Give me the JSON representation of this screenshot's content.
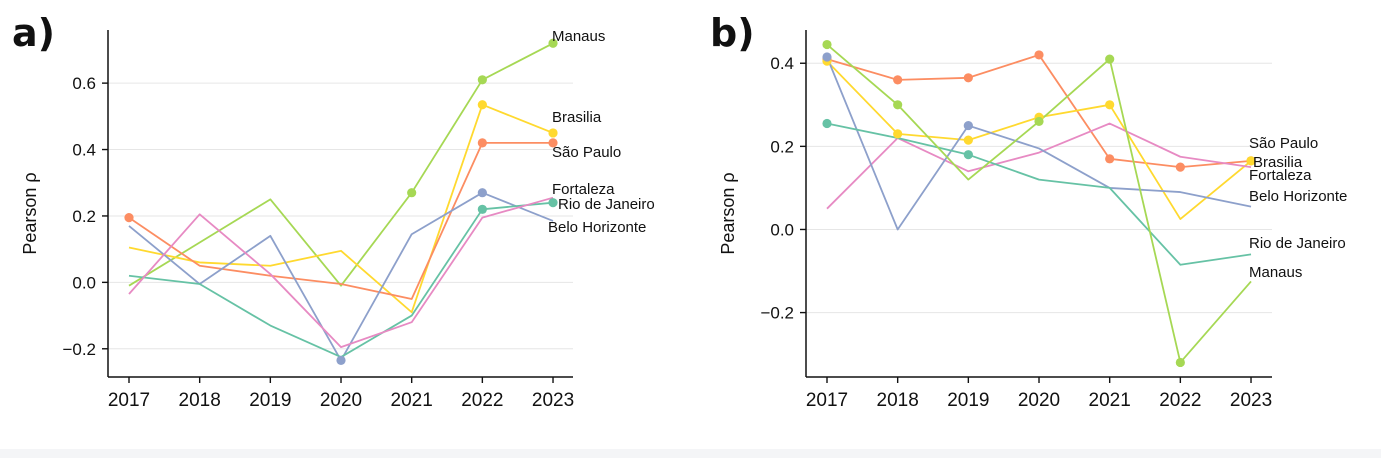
{
  "chart_data": [
    {
      "panel_label": "a)",
      "type": "line",
      "ylabel": "Pearson ρ",
      "xlabel": "",
      "x": [
        "2017",
        "2018",
        "2019",
        "2020",
        "2021",
        "2022",
        "2023"
      ],
      "yticks": [
        "−0.2",
        "0.0",
        "0.2",
        "0.4",
        "0.6"
      ],
      "ylim": [
        -0.285,
        0.76
      ],
      "grid": "horizontal",
      "series": [
        {
          "name": "Manaus",
          "color": "#a6d854",
          "values": [
            -0.01,
            0.12,
            0.25,
            -0.01,
            0.27,
            0.61,
            0.72
          ],
          "markers": [
            4,
            5,
            6
          ]
        },
        {
          "name": "Brasilia",
          "color": "#ffd92f",
          "values": [
            0.105,
            0.06,
            0.05,
            0.095,
            -0.09,
            0.535,
            0.45
          ],
          "markers": [
            5,
            6
          ]
        },
        {
          "name": "São Paulo",
          "color": "#fc8d62",
          "values": [
            0.195,
            0.05,
            0.02,
            -0.005,
            -0.05,
            0.42,
            0.42
          ],
          "markers": [
            0,
            5,
            6
          ]
        },
        {
          "name": "Fortaleza",
          "color": "#8da0cb",
          "values": [
            0.17,
            -0.005,
            0.14,
            -0.235,
            0.145,
            0.27,
            0.185
          ],
          "markers": [
            3,
            5
          ]
        },
        {
          "name": "Rio de Janeiro",
          "color": "#66c2a5",
          "values": [
            0.02,
            -0.005,
            -0.13,
            -0.225,
            -0.1,
            0.22,
            0.24
          ],
          "markers": [
            5,
            6
          ]
        },
        {
          "name": "Belo Horizonte",
          "color": "#e78ac3",
          "values": [
            -0.035,
            0.205,
            0.025,
            -0.195,
            -0.12,
            0.195,
            0.255
          ],
          "markers": []
        }
      ]
    },
    {
      "panel_label": "b)",
      "type": "line",
      "ylabel": "Pearson ρ",
      "xlabel": "",
      "x": [
        "2017",
        "2018",
        "2019",
        "2020",
        "2021",
        "2022",
        "2023"
      ],
      "yticks": [
        "−0.2",
        "0.0",
        "0.2",
        "0.4"
      ],
      "ylim": [
        -0.355,
        0.48
      ],
      "grid": "horizontal",
      "series": [
        {
          "name": "São Paulo",
          "color": "#fc8d62",
          "values": [
            0.41,
            0.36,
            0.365,
            0.42,
            0.17,
            0.15,
            0.165
          ],
          "markers": [
            0,
            1,
            2,
            3,
            4,
            5,
            6
          ]
        },
        {
          "name": "Brasilia",
          "color": "#ffd92f",
          "values": [
            0.405,
            0.23,
            0.215,
            0.27,
            0.3,
            0.025,
            0.165
          ],
          "markers": [
            0,
            1,
            2,
            3,
            4,
            6
          ]
        },
        {
          "name": "Fortaleza",
          "color": "#e78ac3",
          "values": [
            0.05,
            0.22,
            0.14,
            0.185,
            0.255,
            0.175,
            0.15
          ],
          "markers": []
        },
        {
          "name": "Belo Horizonte",
          "color": "#8da0cb",
          "values": [
            0.415,
            0.0,
            0.25,
            0.195,
            0.1,
            0.09,
            0.055
          ],
          "markers": [
            0,
            2
          ]
        },
        {
          "name": "Rio de Janeiro",
          "color": "#66c2a5",
          "values": [
            0.255,
            0.22,
            0.18,
            0.12,
            0.1,
            -0.085,
            -0.06
          ],
          "markers": [
            0,
            2
          ]
        },
        {
          "name": "Manaus",
          "color": "#a6d854",
          "values": [
            0.445,
            0.3,
            0.12,
            0.26,
            0.41,
            -0.32,
            -0.125
          ],
          "markers": [
            0,
            1,
            3,
            4,
            5
          ]
        }
      ]
    }
  ]
}
